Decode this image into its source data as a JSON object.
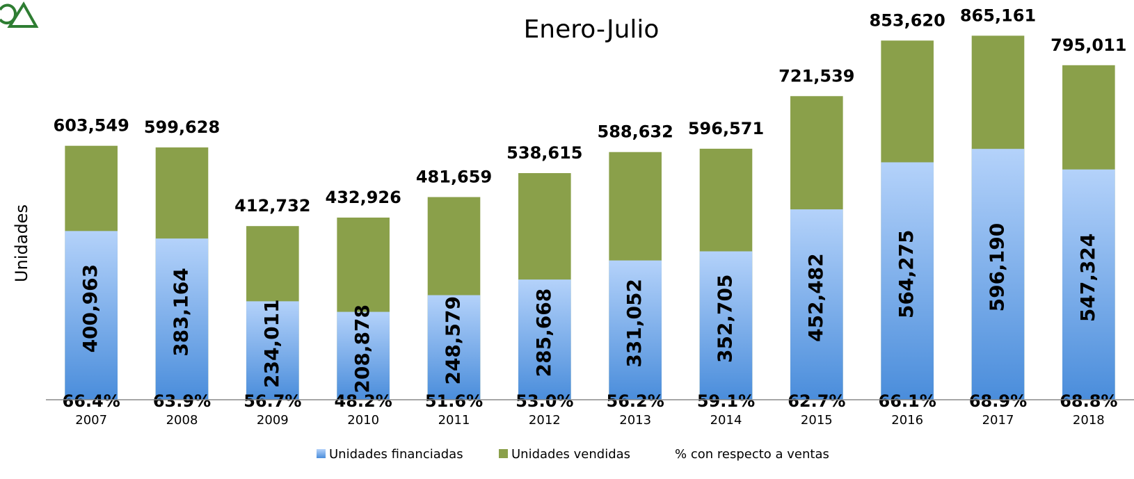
{
  "chart_data": {
    "type": "bar",
    "title": "Enero-Julio",
    "y_label": "Unidades",
    "categories": [
      "2007",
      "2008",
      "2009",
      "2010",
      "2011",
      "2012",
      "2013",
      "2014",
      "2015",
      "2016",
      "2017",
      "2018"
    ],
    "ylim": [
      0,
      950000
    ],
    "series": [
      {
        "name": "Unidades financiadas",
        "color": "#4a8ddb",
        "values": [
          400963,
          383164,
          234011,
          208878,
          248579,
          285668,
          331052,
          352705,
          452482,
          564275,
          596190,
          547324
        ],
        "value_labels": [
          "400,963",
          "383,164",
          "234,011",
          "208,878",
          "248,579",
          "285,668",
          "331,052",
          "352,705",
          "452,482",
          "564,275",
          "596,190",
          "547,324"
        ]
      },
      {
        "name": "Unidades vendidas",
        "color": "#8aa04a",
        "values": [
          603549,
          599628,
          412732,
          432926,
          481659,
          538615,
          588632,
          596571,
          721539,
          853620,
          865161,
          795011
        ],
        "value_labels": [
          "603,549",
          "599,628",
          "412,732",
          "432,926",
          "481,659",
          "538,615",
          "588,632",
          "596,571",
          "721,539",
          "853,620",
          "865,161",
          "795,011"
        ]
      },
      {
        "name": "% con respecto a ventas",
        "values": [
          66.4,
          63.9,
          56.7,
          48.2,
          51.6,
          53.0,
          56.2,
          59.1,
          62.7,
          66.1,
          68.9,
          68.8
        ],
        "value_labels": [
          "66.4%",
          "63.9%",
          "56.7%",
          "48.2%",
          "51.6%",
          "53.0%",
          "56.2%",
          "59.1%",
          "62.7%",
          "66.1%",
          "68.9%",
          "68.8%"
        ]
      }
    ]
  }
}
